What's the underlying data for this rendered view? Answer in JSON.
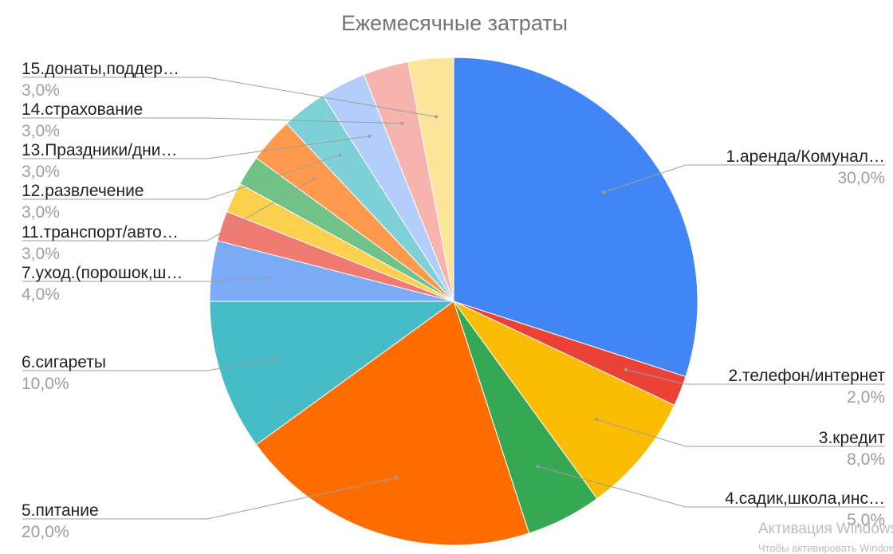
{
  "chart_data": {
    "type": "pie",
    "title": "Ежемесячные затраты",
    "slices": [
      {
        "label": "1.аренда/Комунал…",
        "value": 30.0,
        "value_label": "30,0%",
        "color": "#4285f4"
      },
      {
        "label": "2.телефон/интернет",
        "value": 2.0,
        "value_label": "2,0%",
        "color": "#ea4335"
      },
      {
        "label": "3.кредит",
        "value": 8.0,
        "value_label": "8,0%",
        "color": "#fbbc04"
      },
      {
        "label": "4.садик,школа,инс…",
        "value": 5.0,
        "value_label": "5,0%",
        "color": "#34a853"
      },
      {
        "label": "5.питание",
        "value": 20.0,
        "value_label": "20,0%",
        "color": "#ff6d01"
      },
      {
        "label": "6.сигареты",
        "value": 10.0,
        "value_label": "10,0%",
        "color": "#46bdc6"
      },
      {
        "label": "7.уход.(порошок,ш…",
        "value": 4.0,
        "value_label": "4,0%",
        "color": "#7baaf7"
      },
      {
        "label": "",
        "value": 2.0,
        "value_label": "",
        "color": "#f07b72"
      },
      {
        "label": "",
        "value": 2.0,
        "value_label": "",
        "color": "#fcd04f"
      },
      {
        "label": "",
        "value": 2.0,
        "value_label": "",
        "color": "#71c287"
      },
      {
        "label": "11.транспорт/авто…",
        "value": 3.0,
        "value_label": "3,0%",
        "color": "#ff994d"
      },
      {
        "label": "12.развлечение",
        "value": 3.0,
        "value_label": "3,0%",
        "color": "#7ed1d7"
      },
      {
        "label": "13.Праздники/дни…",
        "value": 3.0,
        "value_label": "3,0%",
        "color": "#b3cefb"
      },
      {
        "label": "14.страхование",
        "value": 3.0,
        "value_label": "3,0%",
        "color": "#f7b4ae"
      },
      {
        "label": "15.донаты,поддер…",
        "value": 3.0,
        "value_label": "3,0%",
        "color": "#fde49b"
      }
    ],
    "legend": "none"
  },
  "watermark": {
    "line1": "Активация Windows",
    "line2": "Чтобы активировать Windows"
  }
}
